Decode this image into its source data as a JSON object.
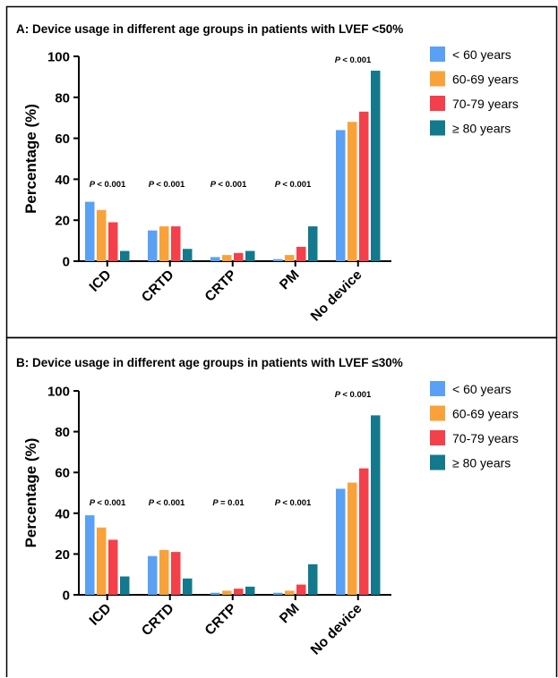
{
  "colors": {
    "lt60": "#5aa1f5",
    "60to69": "#f9a23a",
    "70to79": "#f4404a",
    "ge80": "#13798d"
  },
  "chart_data": [
    {
      "type": "bar",
      "title": "A: Device usage in different age groups in patients with LVEF <50%",
      "ylabel": "Percentage (%)",
      "xlabel": "",
      "ylim": [
        0,
        100
      ],
      "yticks": [
        0,
        20,
        40,
        60,
        80,
        100
      ],
      "categories": [
        "ICD",
        "CRTD",
        "CRTP",
        "PM",
        "No device"
      ],
      "p_values": [
        "< 0.001",
        "< 0.001",
        "< 0.001",
        "< 0.001",
        "< 0.001"
      ],
      "legend": "right",
      "series": [
        {
          "name": "< 60 years",
          "color_key": "lt60",
          "values": [
            29,
            15,
            2,
            1,
            64
          ]
        },
        {
          "name": "60-69 years",
          "color_key": "60to69",
          "values": [
            25,
            17,
            3,
            3,
            68
          ]
        },
        {
          "name": "70-79 years",
          "color_key": "70to79",
          "values": [
            19,
            17,
            4,
            7,
            73
          ]
        },
        {
          "name": "≥ 80 years",
          "color_key": "ge80",
          "values": [
            5,
            6,
            5,
            17,
            93
          ]
        }
      ]
    },
    {
      "type": "bar",
      "title": "B: Device usage in different age groups in patients with LVEF ≤30%",
      "ylabel": "Percentage (%)",
      "xlabel": "",
      "ylim": [
        0,
        100
      ],
      "yticks": [
        0,
        20,
        40,
        60,
        80,
        100
      ],
      "categories": [
        "ICD",
        "CRTD",
        "CRTP",
        "PM",
        "No device"
      ],
      "p_values": [
        "< 0.001",
        "< 0.001",
        "= 0.01",
        "< 0.001",
        "< 0.001"
      ],
      "legend": "right",
      "series": [
        {
          "name": "< 60 years",
          "color_key": "lt60",
          "values": [
            39,
            19,
            1,
            1,
            52
          ]
        },
        {
          "name": "60-69 years",
          "color_key": "60to69",
          "values": [
            33,
            22,
            2,
            2,
            55
          ]
        },
        {
          "name": "70-79 years",
          "color_key": "70to79",
          "values": [
            27,
            21,
            3,
            5,
            62
          ]
        },
        {
          "name": "≥ 80 years",
          "color_key": "ge80",
          "values": [
            9,
            8,
            4,
            15,
            88
          ]
        }
      ]
    }
  ]
}
